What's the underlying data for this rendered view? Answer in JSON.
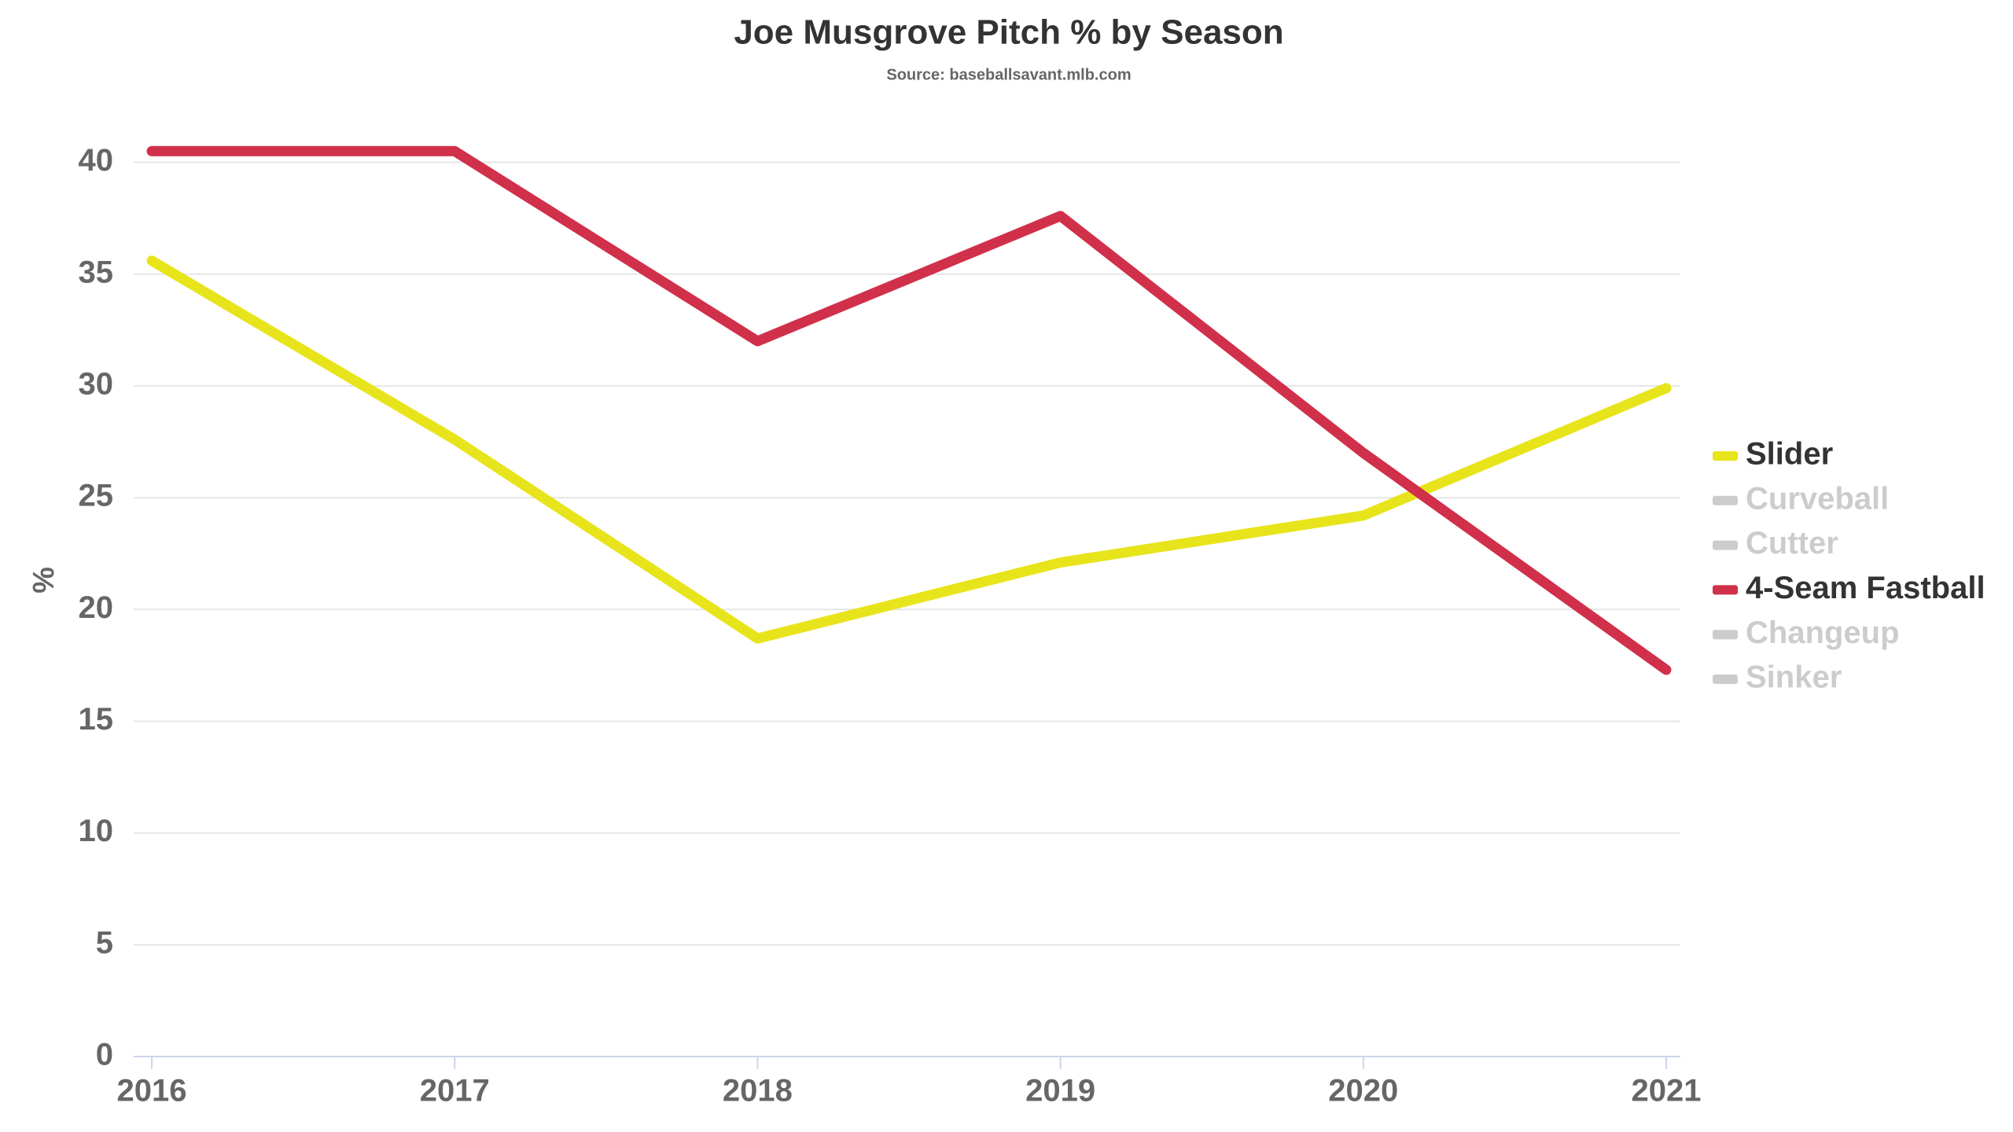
{
  "chart_data": {
    "type": "line",
    "title": "Joe Musgrove Pitch % by Season",
    "subtitle": "Source: baseballsavant.mlb.com",
    "y_label": "%",
    "categories": [
      "2016",
      "2017",
      "2018",
      "2019",
      "2020",
      "2021"
    ],
    "series": [
      {
        "name": "Slider",
        "color": "#e8e41c",
        "visible": true,
        "values": [
          35.6,
          27.6,
          18.7,
          22.1,
          24.2,
          29.9
        ]
      },
      {
        "name": "Curveball",
        "color": "#cccccc",
        "visible": false
      },
      {
        "name": "Cutter",
        "color": "#cccccc",
        "visible": false
      },
      {
        "name": "4-Seam Fastball",
        "color": "#d1304a",
        "visible": true,
        "values": [
          40.5,
          40.5,
          32.0,
          37.6,
          27.0,
          17.3
        ]
      },
      {
        "name": "Changeup",
        "color": "#cccccc",
        "visible": false
      },
      {
        "name": "Sinker",
        "color": "#cccccc",
        "visible": false
      }
    ],
    "ylim": [
      0,
      40
    ],
    "yticks": [
      0,
      5,
      10,
      15,
      20,
      25,
      30,
      35,
      40
    ],
    "grid": true,
    "legend": "right"
  }
}
